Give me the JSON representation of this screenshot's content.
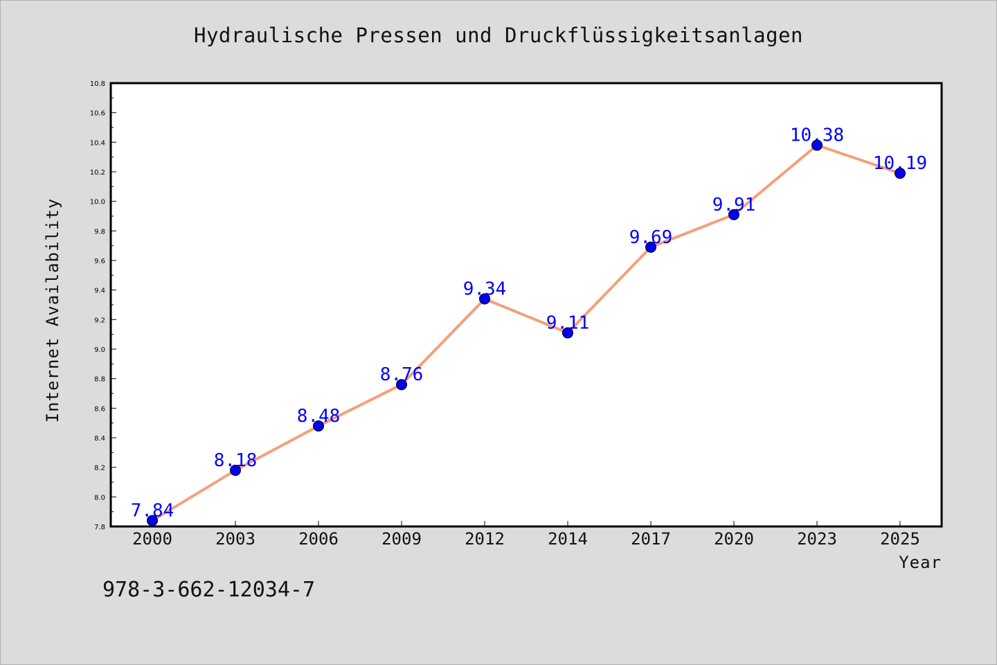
{
  "chart_data": {
    "type": "line",
    "title": "Hydraulische Pressen und Druckflüssigkeitsanlagen",
    "xlabel": "Year",
    "ylabel": "Internet Availability",
    "categories": [
      "2000",
      "2003",
      "2006",
      "2009",
      "2012",
      "2014",
      "2017",
      "2020",
      "2023",
      "2025"
    ],
    "series": [
      {
        "values": [
          7.84,
          8.18,
          8.48,
          8.76,
          9.34,
          9.11,
          9.69,
          9.91,
          10.38,
          10.19
        ],
        "data_labels": [
          "7.84",
          "8.18",
          "8.48",
          "8.76",
          "9.34",
          "9.11",
          "9.69",
          "9.91",
          "10.38",
          "10.19"
        ],
        "line_color": "#f4a07a",
        "marker_color": "#0000ee"
      }
    ],
    "ylim": [
      7.8,
      10.8
    ],
    "yticks": [
      "7.8",
      "8.0",
      "8.2",
      "8.4",
      "8.6",
      "8.8",
      "9.0",
      "9.2",
      "9.4",
      "9.6",
      "9.8",
      "10.0",
      "10.2",
      "10.4",
      "10.6",
      "10.8"
    ],
    "grid": false,
    "legend": "none"
  },
  "footer": {
    "isbn": "978-3-662-12034-7"
  },
  "colors": {
    "background": "#dcdcdc",
    "plot_background": "#ffffff",
    "label_color": "#0000ff"
  }
}
